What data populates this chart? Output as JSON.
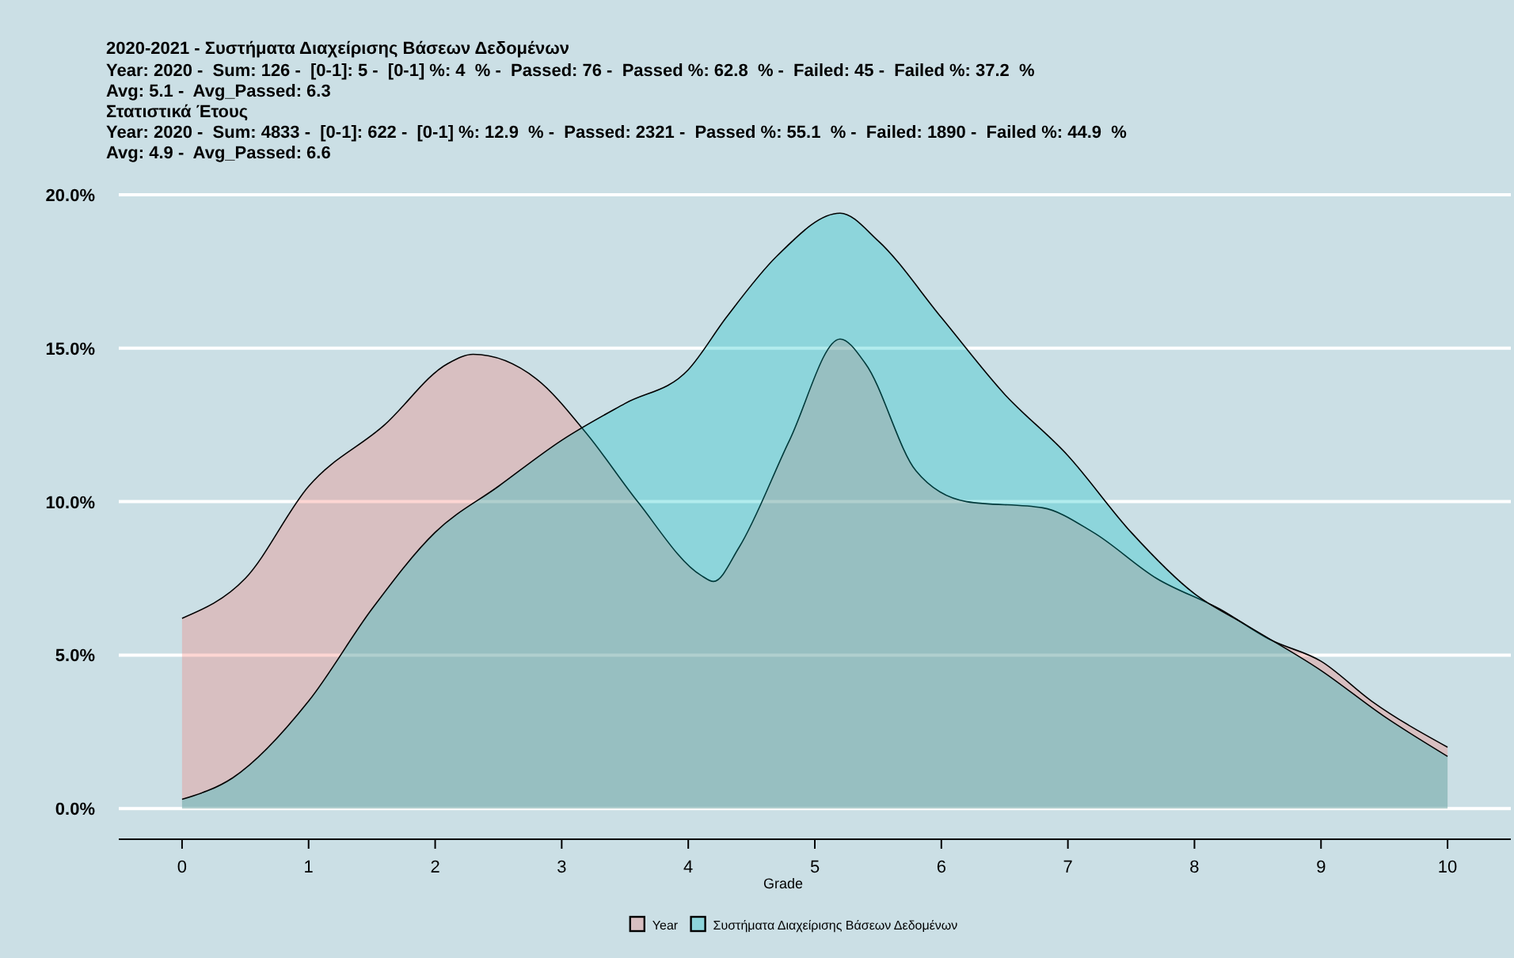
{
  "chart_data": {
    "type": "area",
    "title": "2020-2021 - Συστήματα Διαχείρισης Βάσεων Δεδομένων",
    "subtitle": "Year: 2020 -  Sum: 126 -  [0-1]: 5 -  [0-1] %: 4  % -  Passed: 76 -  Passed %: 62.8  % -  Failed: 45 -  Failed %: 37.2  %\nAvg: 5.1 -  Avg_Passed: 6.3\nΣτατιστικά Έτους\nYear: 2020 -  Sum: 4833 -  [0-1]: 622 -  [0-1] %: 12.9  % -  Passed: 2321 -  Passed %: 55.1  % -  Failed: 1890 -  Failed %: 44.9  %\nAvg: 4.9 -  Avg_Passed: 6.6",
    "xlabel": "Grade",
    "series": [
      {
        "name": "Year",
        "color": "#f8766d",
        "x": [
          0,
          0.5,
          1,
          1.6,
          2.1,
          2.3,
          2.8,
          3.2,
          3.6,
          4.1,
          4.2,
          4.4,
          4.8,
          5.2,
          5.4,
          5.8,
          6.2,
          6.8,
          7.2,
          7.7,
          8.2,
          8.6,
          9,
          9.4,
          10
        ],
        "values": [
          6.2,
          7.5,
          10.5,
          12.5,
          14.5,
          14.8,
          14,
          12.2,
          10,
          7.6,
          7.4,
          8.5,
          12,
          15.3,
          14.5,
          11,
          10,
          9.8,
          9,
          7.5,
          6.5,
          5.5,
          4.8,
          3.5,
          2
        ]
      },
      {
        "name": "Συστήματα Διαχείρισης Βάσεων Δεδομένων",
        "color": "#00bfc4",
        "x": [
          0,
          0.4,
          1,
          1.5,
          2,
          2.5,
          3,
          3.5,
          4,
          4.3,
          4.7,
          5.2,
          5.5,
          6,
          6.5,
          7,
          7.5,
          8,
          8.4,
          9,
          9.5,
          10
        ],
        "values": [
          0.3,
          1,
          3.5,
          6.5,
          9,
          10.5,
          12,
          13.2,
          14.3,
          16,
          18,
          19.4,
          18.5,
          16,
          13.5,
          11.5,
          9,
          7,
          6,
          4.5,
          3,
          1.7
        ]
      }
    ],
    "xlim": [
      -0.5,
      10.5
    ],
    "xticks": [
      0,
      1,
      2,
      3,
      4,
      5,
      6,
      7,
      8,
      9,
      10
    ],
    "ylim": [
      -1,
      20
    ],
    "yticks": [
      {
        "value": 0,
        "label": "0.0%"
      },
      {
        "value": 5,
        "label": "5.0%"
      },
      {
        "value": 10,
        "label": "10.0%"
      },
      {
        "value": 15,
        "label": "15.0%"
      },
      {
        "value": 20,
        "label": "20.0%"
      }
    ],
    "grid": "y",
    "legend": "bottom"
  }
}
